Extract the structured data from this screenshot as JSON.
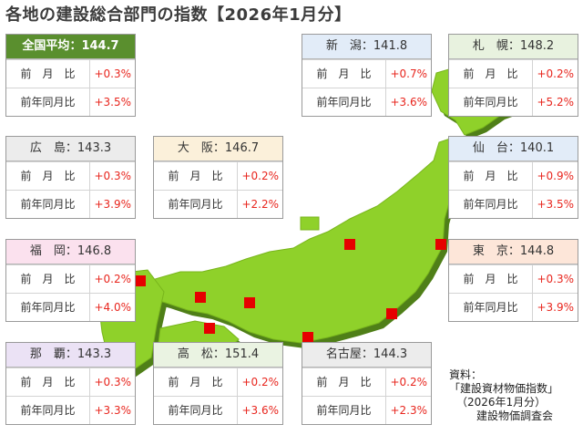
{
  "title": "各地の建設総合部門の指数【2026年1月分】",
  "row_labels": {
    "mom": "前　月　比",
    "yoy": "前年同月比"
  },
  "cards": {
    "national": {
      "name": "全国平均",
      "index": "144.7",
      "mom": "+0.3%",
      "yoy": "+3.5%"
    },
    "niigata": {
      "name": "新　潟",
      "index": "141.8",
      "mom": "+0.7%",
      "yoy": "+3.6%"
    },
    "sapporo": {
      "name": "札　幌",
      "index": "148.2",
      "mom": "+0.2%",
      "yoy": "+5.2%"
    },
    "hiroshima": {
      "name": "広　島",
      "index": "143.3",
      "mom": "+0.3%",
      "yoy": "+3.9%"
    },
    "osaka": {
      "name": "大　阪",
      "index": "146.7",
      "mom": "+0.2%",
      "yoy": "+2.2%"
    },
    "sendai": {
      "name": "仙　台",
      "index": "140.1",
      "mom": "+0.9%",
      "yoy": "+3.5%"
    },
    "fukuoka": {
      "name": "福　岡",
      "index": "146.8",
      "mom": "+0.2%",
      "yoy": "+4.0%"
    },
    "tokyo": {
      "name": "東　京",
      "index": "144.8",
      "mom": "+0.3%",
      "yoy": "+3.9%"
    },
    "naha": {
      "name": "那　覇",
      "index": "143.3",
      "mom": "+0.3%",
      "yoy": "+3.3%"
    },
    "takamatsu": {
      "name": "高　松",
      "index": "151.4",
      "mom": "+0.2%",
      "yoy": "+3.6%"
    },
    "nagoya": {
      "name": "名古屋",
      "index": "144.3",
      "mom": "+0.2%",
      "yoy": "+2.3%"
    }
  },
  "source": {
    "line1": "資料：",
    "line2": "「建設資材物価指数」",
    "line3": "（2026年1月分）",
    "line4": "建設物価調査会"
  },
  "colors": {
    "map_land": "#8fd12a",
    "map_shadow": "#4f7f18",
    "marker": "#e60000",
    "positive": "#e8261e",
    "national_header": "#5a8f2e"
  }
}
